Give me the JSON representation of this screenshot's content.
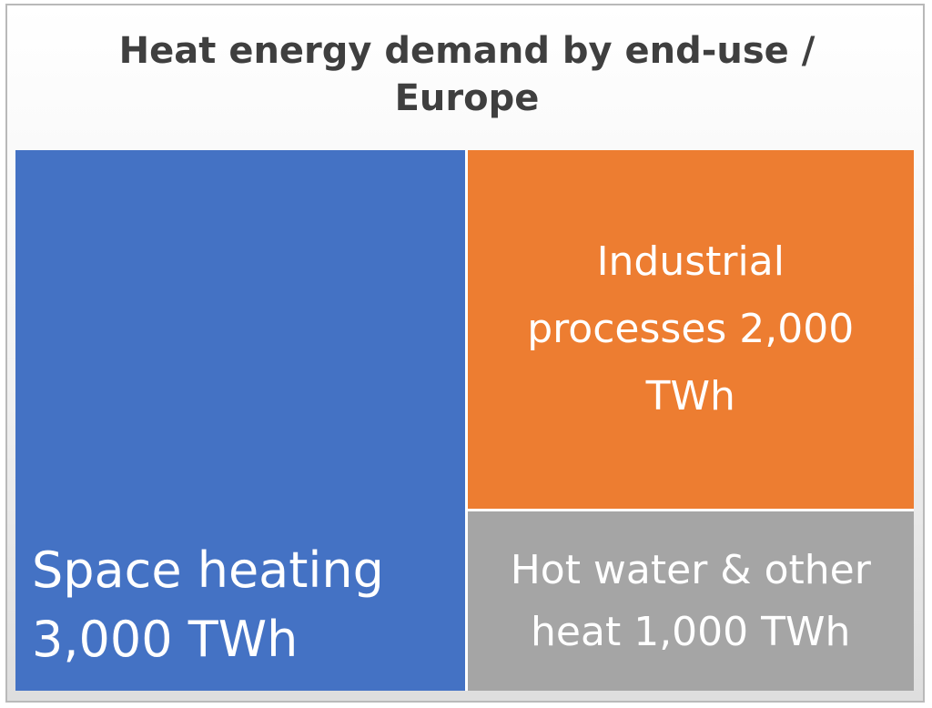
{
  "chart_data": {
    "type": "treemap",
    "title": "Heat energy demand by end-use / Europe",
    "title_lines": [
      "Heat energy demand by end-use /",
      "Europe"
    ],
    "unit": "TWh",
    "items": [
      {
        "label": "Space heating 3,000 TWh",
        "label_lines": [
          "Space heating",
          "3,000 TWh"
        ],
        "value": 3000,
        "color": "#4472c4"
      },
      {
        "label": "Industrial processes 2,000 TWh",
        "label_lines": [
          "Industrial",
          "processes 2,000",
          "TWh"
        ],
        "value": 2000,
        "color": "#ed7d31"
      },
      {
        "label": "Hot water & other heat 1,000 TWh",
        "label_lines": [
          "Hot water & other",
          "heat 1,000 TWh"
        ],
        "value": 1000,
        "color": "#a5a5a5"
      }
    ]
  }
}
